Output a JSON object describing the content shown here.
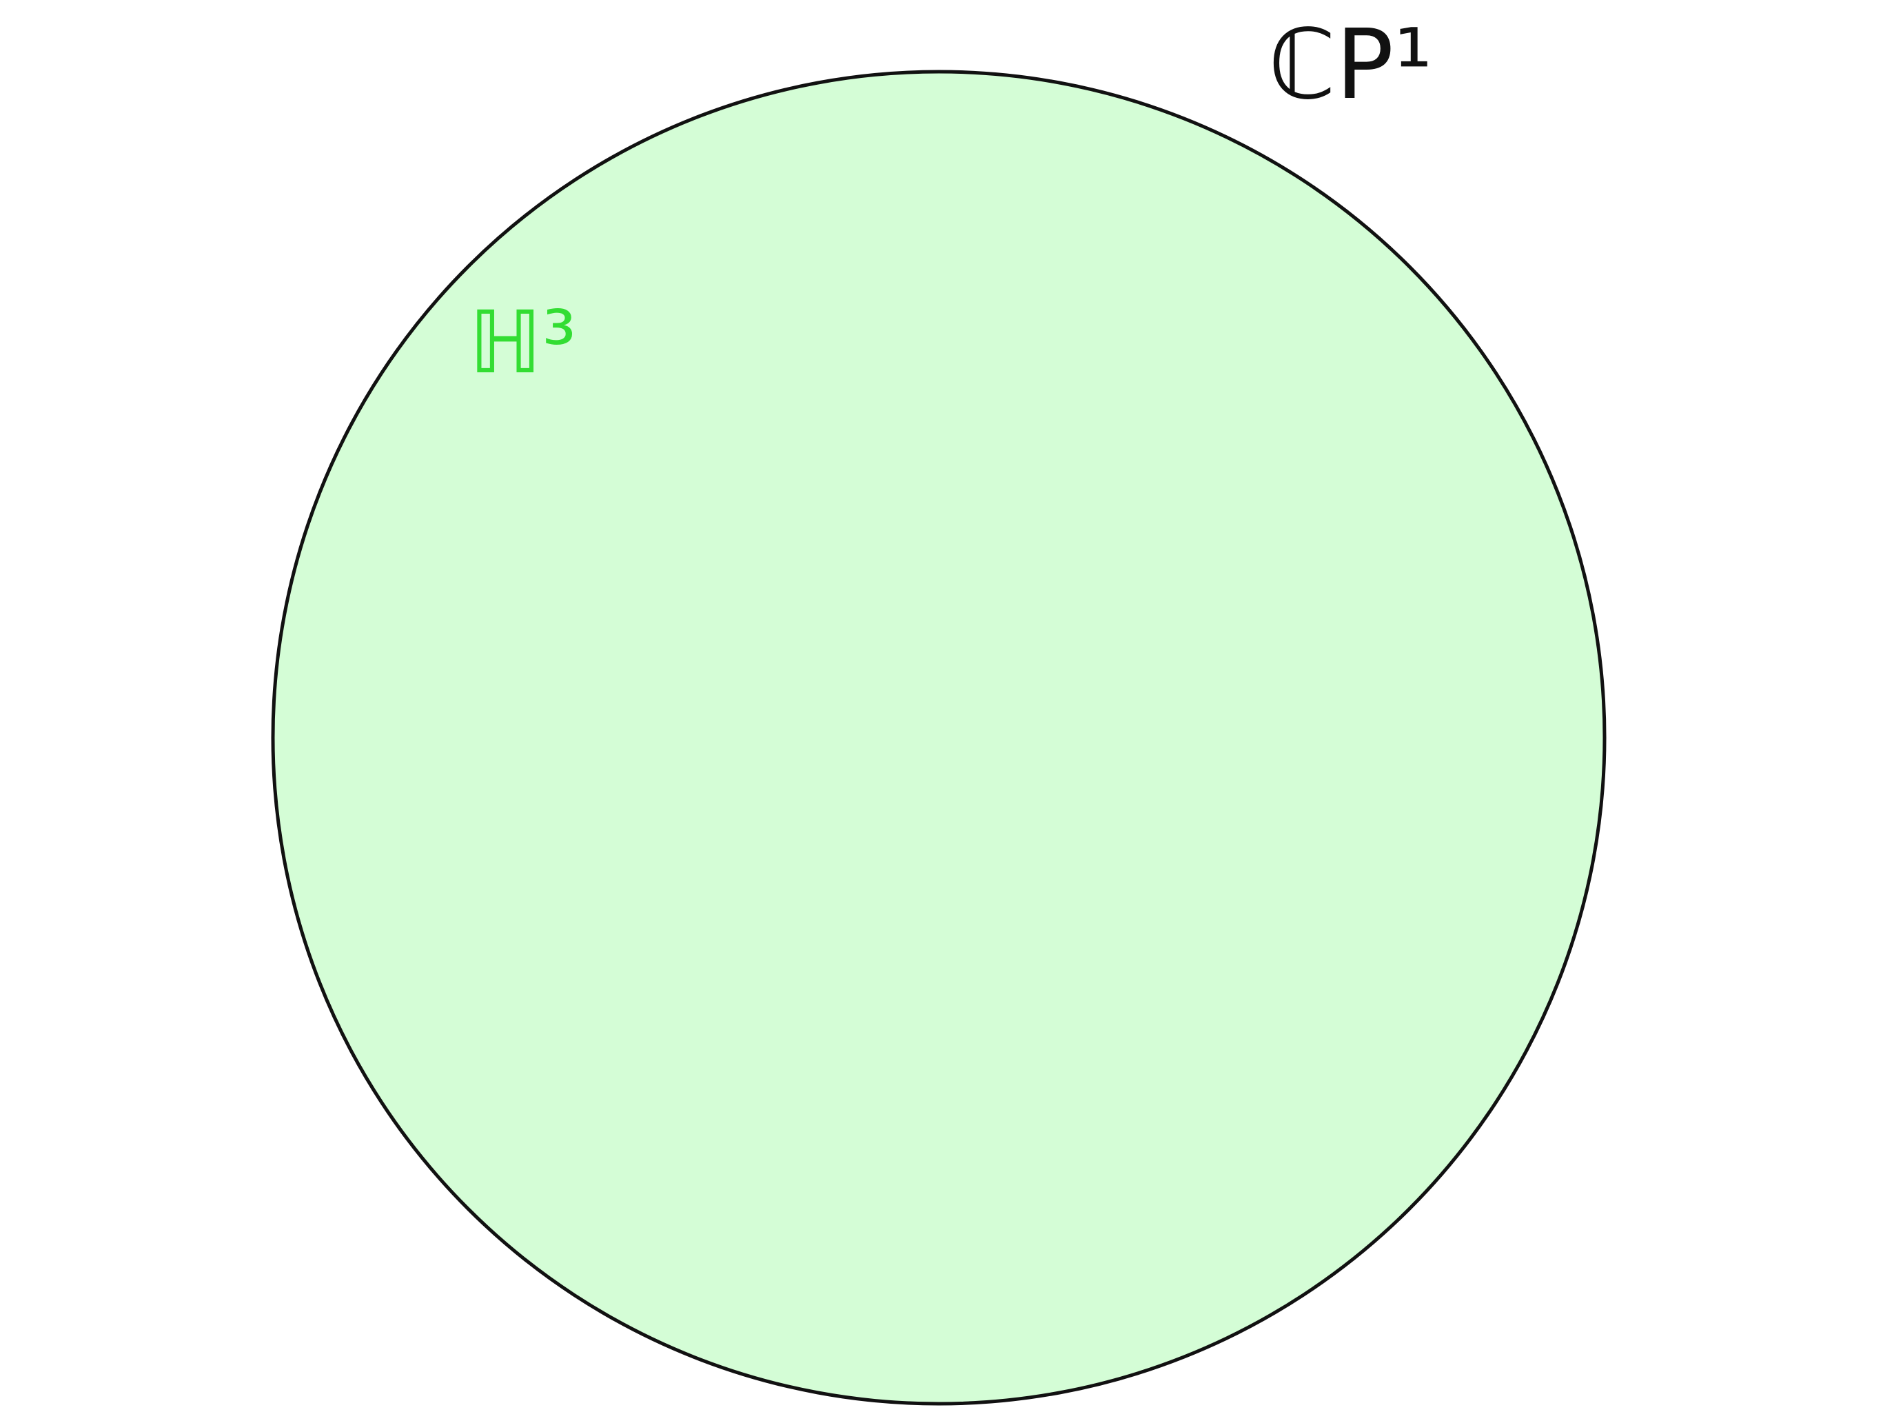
{
  "labels": {
    "sphere": "ℂP¹",
    "interior": "ℍ³"
  }
}
